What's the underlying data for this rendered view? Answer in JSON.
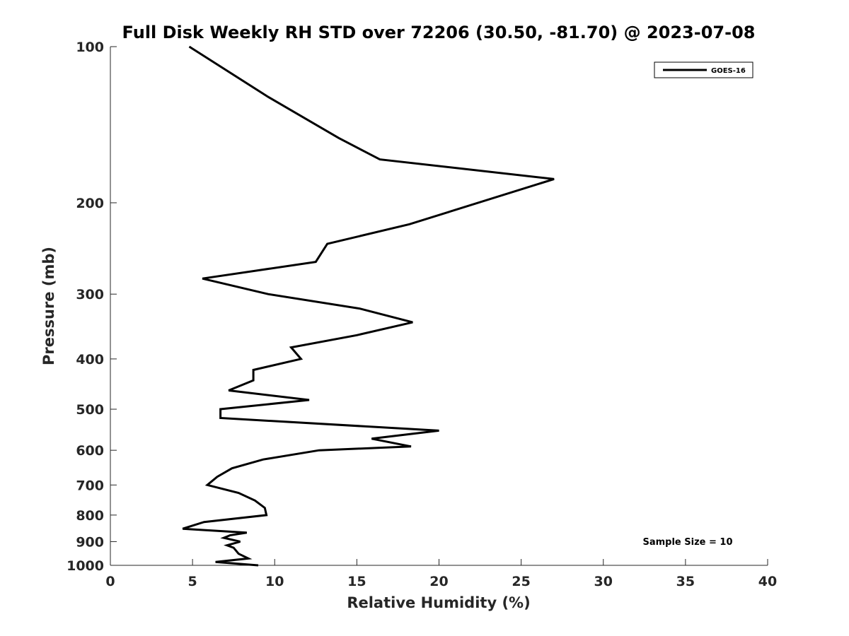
{
  "chart_data": {
    "type": "line",
    "title": "Full Disk Weekly RH STD over 72206 (30.50, -81.70) @ 2023-07-08",
    "xlabel": "Relative Humidity (%)",
    "ylabel": "Pressure (mb)",
    "xlim": [
      0,
      40
    ],
    "ylim": [
      100,
      1000
    ],
    "y_scale": "log",
    "y_reversed": true,
    "xticks": [
      0,
      5,
      10,
      15,
      20,
      25,
      30,
      35,
      40
    ],
    "yticks": [
      100,
      200,
      300,
      400,
      500,
      600,
      700,
      800,
      900,
      1000
    ],
    "grid": false,
    "legend": {
      "position": "top-right",
      "entries": [
        "GOES-16"
      ]
    },
    "annotation": "Sample Size = 10",
    "series": [
      {
        "name": "GOES-16",
        "color": "#000000",
        "points": [
          [
            4.8,
            100
          ],
          [
            9.6,
            125
          ],
          [
            13.9,
            150
          ],
          [
            16.4,
            165
          ],
          [
            27.0,
            180
          ],
          [
            18.2,
            220
          ],
          [
            13.2,
            240
          ],
          [
            12.5,
            260
          ],
          [
            5.6,
            280
          ],
          [
            9.6,
            300
          ],
          [
            15.2,
            320
          ],
          [
            18.4,
            340
          ],
          [
            15.0,
            360
          ],
          [
            11.0,
            380
          ],
          [
            11.6,
            400
          ],
          [
            8.7,
            420
          ],
          [
            8.7,
            440
          ],
          [
            7.2,
            460
          ],
          [
            12.1,
            480
          ],
          [
            6.7,
            500
          ],
          [
            6.7,
            520
          ],
          [
            20.0,
            550
          ],
          [
            15.9,
            570
          ],
          [
            18.3,
            590
          ],
          [
            12.7,
            600
          ],
          [
            9.3,
            625
          ],
          [
            7.4,
            650
          ],
          [
            6.5,
            675
          ],
          [
            5.9,
            700
          ],
          [
            7.8,
            725
          ],
          [
            8.8,
            750
          ],
          [
            9.4,
            775
          ],
          [
            9.5,
            800
          ],
          [
            5.7,
            825
          ],
          [
            4.4,
            850
          ],
          [
            8.3,
            865
          ],
          [
            7.3,
            875
          ],
          [
            6.9,
            885
          ],
          [
            7.9,
            900
          ],
          [
            7.1,
            915
          ],
          [
            7.5,
            925
          ],
          [
            7.8,
            950
          ],
          [
            8.4,
            970
          ],
          [
            6.4,
            985
          ],
          [
            9.0,
            1000
          ]
        ]
      }
    ]
  }
}
